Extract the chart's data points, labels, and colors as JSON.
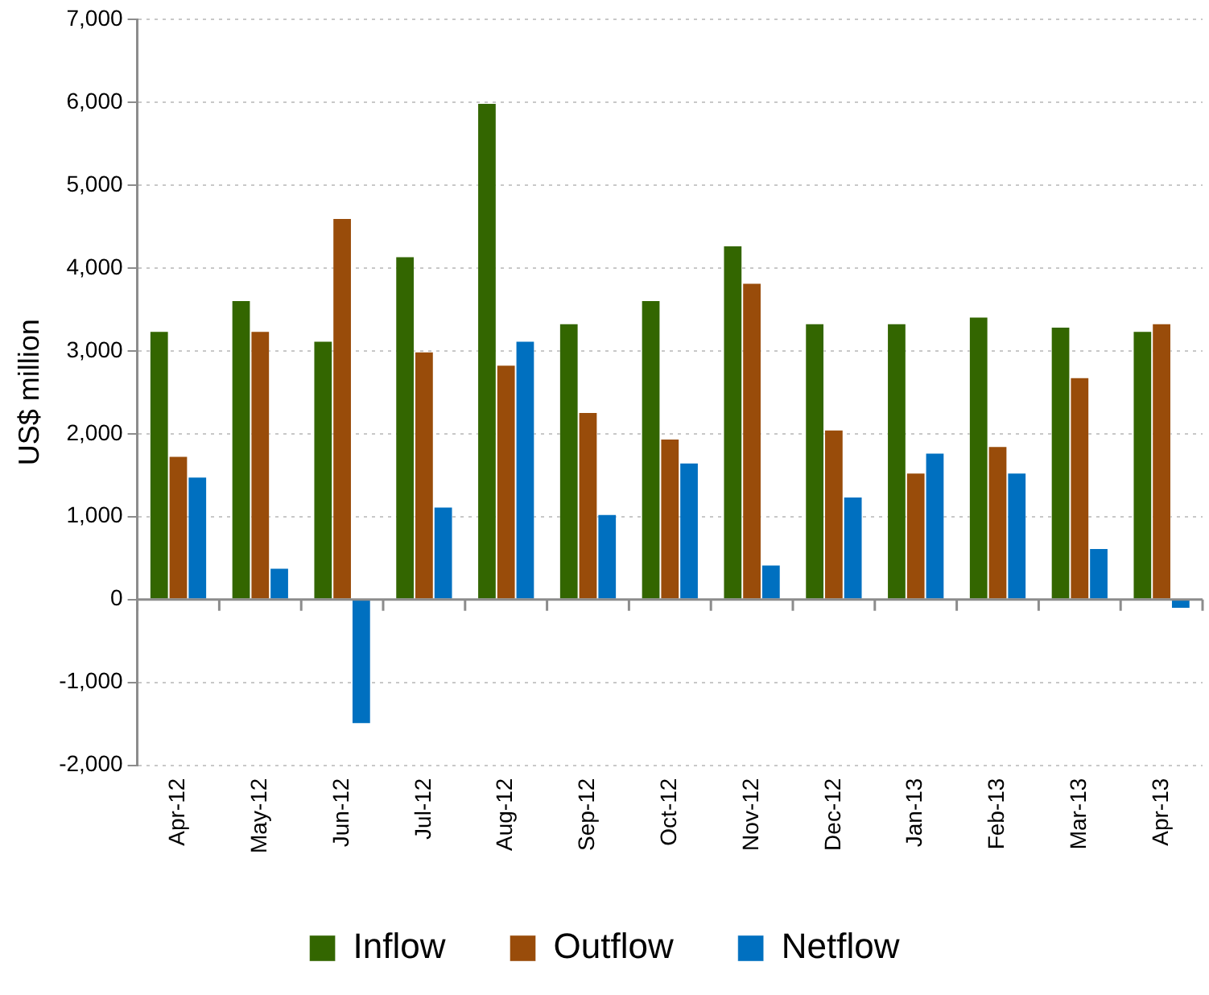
{
  "chart_data": {
    "type": "bar",
    "ylabel": "US$ million",
    "categories": [
      "Apr-12",
      "May-12",
      "Jun-12",
      "Jul-12",
      "Aug-12",
      "Sep-12",
      "Oct-12",
      "Nov-12",
      "Dec-12",
      "Jan-13",
      "Feb-13",
      "Mar-13",
      "Apr-13"
    ],
    "series": [
      {
        "name": "Inflow",
        "color": "#336600",
        "values": [
          3240,
          3610,
          3120,
          4140,
          5990,
          3330,
          3610,
          4270,
          3330,
          3330,
          3410,
          3290,
          3240
        ]
      },
      {
        "name": "Outflow",
        "color": "#994c0a",
        "values": [
          1730,
          3240,
          4600,
          2990,
          2830,
          2260,
          1940,
          3820,
          2050,
          1530,
          1850,
          2680,
          3330
        ]
      },
      {
        "name": "Netflow",
        "color": "#0070c0",
        "values": [
          1480,
          380,
          -1500,
          1120,
          3120,
          1030,
          1650,
          420,
          1240,
          1770,
          1530,
          620,
          -110
        ]
      }
    ],
    "ylim": [
      -2000,
      7000
    ],
    "yticks": [
      {
        "value": -2000,
        "label": "-2,000"
      },
      {
        "value": -1000,
        "label": "-1,000"
      },
      0,
      {
        "value": 1000,
        "label": "1,000"
      },
      {
        "value": 2000,
        "label": "2,000"
      },
      {
        "value": 3000,
        "label": "3,000"
      },
      {
        "value": 4000,
        "label": "4,000"
      },
      {
        "value": 5000,
        "label": "5,000"
      },
      {
        "value": 6000,
        "label": "6,000"
      },
      {
        "value": 7000,
        "label": "7,000"
      }
    ],
    "grid": "y",
    "legend": "bottom"
  }
}
